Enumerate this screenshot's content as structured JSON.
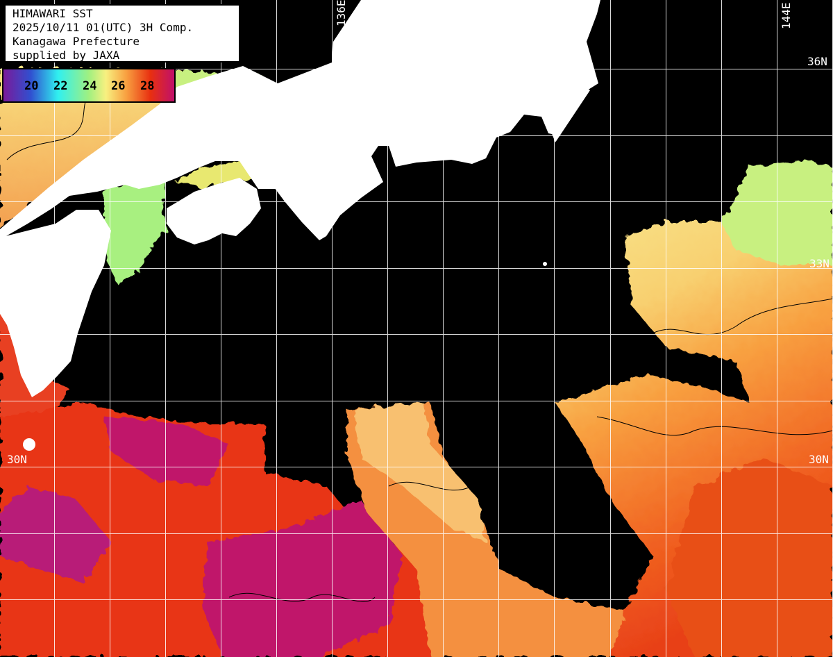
{
  "title": {
    "lines": [
      "HIMAWARI SST",
      "2025/10/11 01(UTC) 3H Comp.",
      "Kanagawa Prefecture",
      "supplied by JAXA"
    ]
  },
  "colorbar": {
    "ticks": [
      "20",
      "22",
      "24",
      "26",
      "28"
    ],
    "unit_implied": "°C",
    "colors": [
      "#7a1a9a",
      "#3050d0",
      "#30f0f0",
      "#a0f080",
      "#f8f080",
      "#f8a040",
      "#e83010",
      "#c0106a"
    ]
  },
  "grid_labels": {
    "lon_136": "136E",
    "lon_144": "144E",
    "lat_36": "36N",
    "lat_33": "33N",
    "lat_30_left": "30N",
    "lat_30_right": "30N"
  },
  "colors": {
    "land": "#ffffff",
    "no_data": "#000000",
    "grid": "#ffffff",
    "contour": "#000000"
  }
}
